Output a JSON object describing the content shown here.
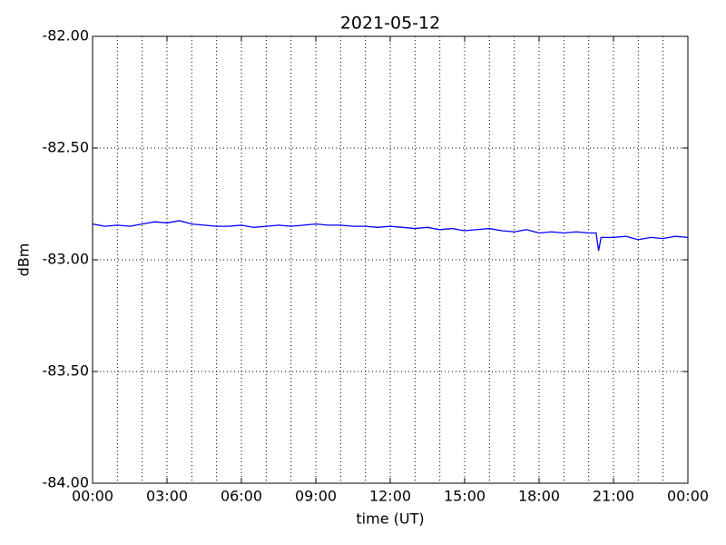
{
  "chart_data": {
    "type": "line",
    "title": "2021-05-12",
    "xlabel": "time (UT)",
    "ylabel": "dBm",
    "x": [
      0,
      0.5,
      1,
      1.5,
      2,
      2.5,
      3,
      3.5,
      4,
      4.5,
      5,
      5.5,
      6,
      6.5,
      7,
      7.5,
      8,
      8.5,
      9,
      9.5,
      10,
      10.5,
      11,
      11.5,
      12,
      12.5,
      13,
      13.5,
      14,
      14.5,
      15,
      15.5,
      16,
      16.5,
      17,
      17.5,
      18,
      18.5,
      19,
      19.5,
      20,
      20.3,
      20.4,
      20.5,
      21,
      21.5,
      22,
      22.5,
      23,
      23.5,
      24
    ],
    "series": [
      {
        "name": "dBm",
        "color": "#0000ff",
        "values": [
          -82.84,
          -82.85,
          -82.845,
          -82.85,
          -82.84,
          -82.83,
          -82.835,
          -82.825,
          -82.84,
          -82.845,
          -82.85,
          -82.85,
          -82.845,
          -82.855,
          -82.85,
          -82.845,
          -82.85,
          -82.845,
          -82.84,
          -82.845,
          -82.845,
          -82.85,
          -82.85,
          -82.855,
          -82.85,
          -82.855,
          -82.86,
          -82.855,
          -82.865,
          -82.86,
          -82.87,
          -82.865,
          -82.86,
          -82.87,
          -82.875,
          -82.865,
          -82.88,
          -82.875,
          -82.88,
          -82.875,
          -82.88,
          -82.88,
          -82.96,
          -82.9,
          -82.9,
          -82.895,
          -82.91,
          -82.9,
          -82.905,
          -82.895,
          -82.9
        ]
      }
    ],
    "xlim": [
      0,
      24
    ],
    "xticks": [
      {
        "value": 0,
        "label": "00:00"
      },
      {
        "value": 3,
        "label": "03:00"
      },
      {
        "value": 6,
        "label": "06:00"
      },
      {
        "value": 9,
        "label": "09:00"
      },
      {
        "value": 12,
        "label": "12:00"
      },
      {
        "value": 15,
        "label": "15:00"
      },
      {
        "value": 18,
        "label": "18:00"
      },
      {
        "value": 21,
        "label": "21:00"
      },
      {
        "value": 24,
        "label": "00:00"
      }
    ],
    "x_minor_ticks": [
      1,
      2,
      4,
      5,
      7,
      8,
      10,
      11,
      13,
      14,
      16,
      17,
      19,
      20,
      22,
      23
    ],
    "ylim": [
      -84,
      -82
    ],
    "yticks": [
      {
        "value": -84,
        "label": "-84.00"
      },
      {
        "value": -83.5,
        "label": "-83.50"
      },
      {
        "value": -83,
        "label": "-83.00"
      },
      {
        "value": -82.5,
        "label": "-82.50"
      },
      {
        "value": -82,
        "label": "-82.00"
      }
    ],
    "grid": true
  }
}
